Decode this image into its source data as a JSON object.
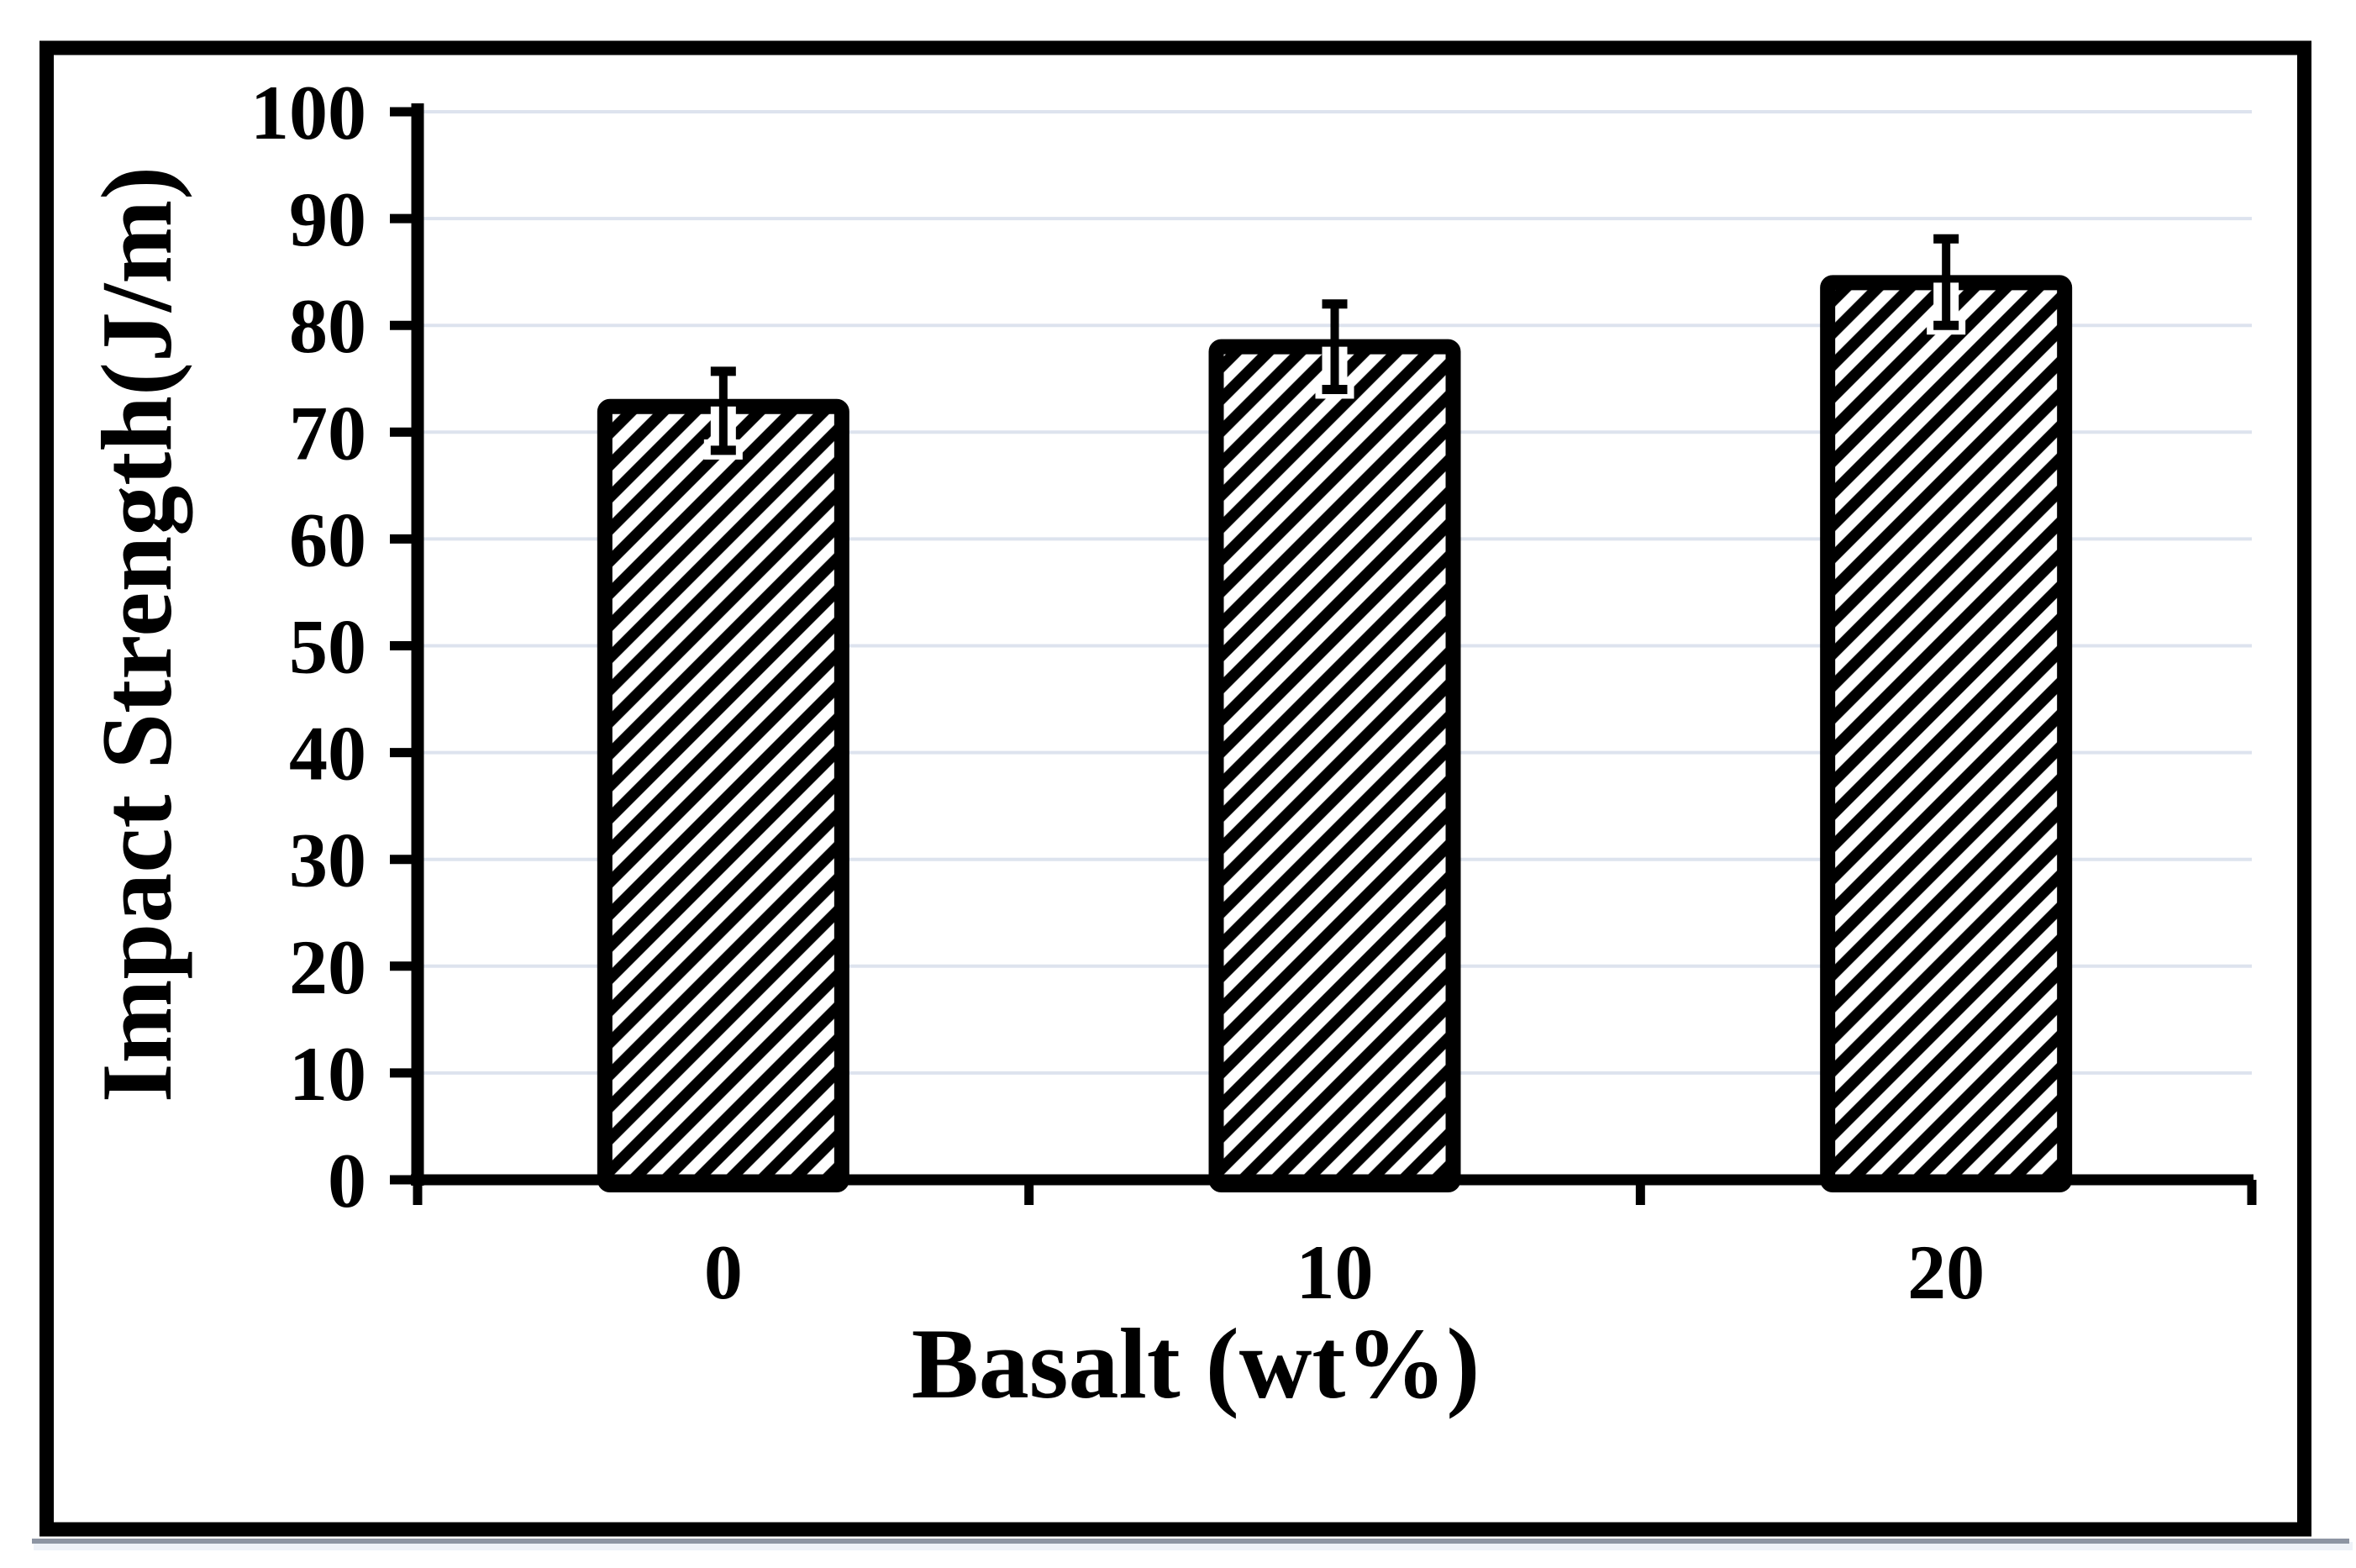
{
  "figure": {
    "background": "#ffffff",
    "border_color": "#000000",
    "shadow_color": "#8d95a3",
    "shadow_color_light": "#eef2f8"
  },
  "chart_data": {
    "type": "bar",
    "categories": [
      "0",
      "10",
      "20"
    ],
    "values": [
      72.4,
      78.0,
      84.0
    ],
    "error_top": [
      75.7,
      82.0,
      88.1
    ],
    "error_bottom": [
      68.3,
      74.0,
      80.0
    ],
    "title": "",
    "xlabel": "Basalt (wt%)",
    "ylabel": "Impact Strength(J/m)",
    "ylim": [
      0,
      100
    ],
    "ytick_step": 10,
    "ytick_labels": [
      "0",
      "10",
      "20",
      "30",
      "40",
      "50",
      "60",
      "70",
      "80",
      "90",
      "100"
    ],
    "grid": true,
    "legend_position": "none",
    "bar_fill": "diagonal-hatch",
    "bar_color": "#000000",
    "gridline_color": "#dde3ee",
    "axis_color": "#000000"
  }
}
